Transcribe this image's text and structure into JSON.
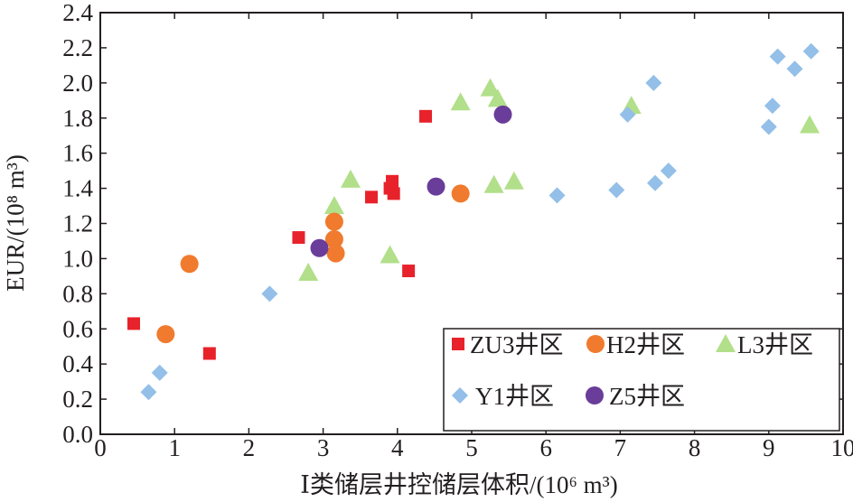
{
  "chart_data": {
    "type": "scatter",
    "xlabel": "Ⅰ类储层井控储层体积/(10⁶ m³)",
    "ylabel": "EUR/(10⁸ m³)",
    "xlim": [
      0,
      10
    ],
    "ylim": [
      0,
      2.4
    ],
    "xticks": [
      "0",
      "1",
      "2",
      "3",
      "4",
      "5",
      "6",
      "7",
      "8",
      "9",
      "10"
    ],
    "yticks": [
      "0.0",
      "0.2",
      "0.4",
      "0.6",
      "0.8",
      "1.0",
      "1.2",
      "1.4",
      "1.6",
      "1.8",
      "2.0",
      "2.2",
      "2.4"
    ],
    "grid": false,
    "legend_position": "bottom-right",
    "series": [
      {
        "name": "ZU3井区",
        "marker": "square",
        "color": "#e8222b",
        "points": [
          [
            0.45,
            0.63
          ],
          [
            1.47,
            0.46
          ],
          [
            2.67,
            1.12
          ],
          [
            3.65,
            1.35
          ],
          [
            3.9,
            1.4
          ],
          [
            3.93,
            1.44
          ],
          [
            3.95,
            1.37
          ],
          [
            4.15,
            0.93
          ],
          [
            4.38,
            1.81
          ]
        ]
      },
      {
        "name": "H2井区",
        "marker": "circle",
        "color": "#f07a2d",
        "points": [
          [
            0.88,
            0.57
          ],
          [
            1.2,
            0.97
          ],
          [
            3.15,
            1.21
          ],
          [
            3.15,
            1.11
          ],
          [
            3.17,
            1.03
          ],
          [
            4.85,
            1.37
          ]
        ]
      },
      {
        "name": "L3井区",
        "marker": "triangle",
        "color": "#b2df8a",
        "points": [
          [
            2.8,
            0.92
          ],
          [
            3.15,
            1.3
          ],
          [
            3.37,
            1.45
          ],
          [
            3.9,
            1.02
          ],
          [
            4.85,
            1.89
          ],
          [
            5.25,
            1.97
          ],
          [
            5.3,
            1.42
          ],
          [
            5.35,
            1.91
          ],
          [
            5.57,
            1.44
          ],
          [
            7.15,
            1.87
          ],
          [
            9.55,
            1.76
          ]
        ]
      },
      {
        "name": "Y1井区",
        "marker": "diamond",
        "color": "#93bfe8",
        "points": [
          [
            0.65,
            0.24
          ],
          [
            0.8,
            0.35
          ],
          [
            2.28,
            0.8
          ],
          [
            6.15,
            1.36
          ],
          [
            6.95,
            1.39
          ],
          [
            7.1,
            1.82
          ],
          [
            7.45,
            2.0
          ],
          [
            7.47,
            1.43
          ],
          [
            7.65,
            1.5
          ],
          [
            9.0,
            1.75
          ],
          [
            9.05,
            1.87
          ],
          [
            9.12,
            2.15
          ],
          [
            9.35,
            2.08
          ],
          [
            9.57,
            2.18
          ]
        ]
      },
      {
        "name": "Z5井区",
        "marker": "circle",
        "color": "#6a3d9a",
        "points": [
          [
            2.95,
            1.06
          ],
          [
            4.52,
            1.41
          ],
          [
            5.42,
            1.82
          ]
        ]
      }
    ]
  }
}
